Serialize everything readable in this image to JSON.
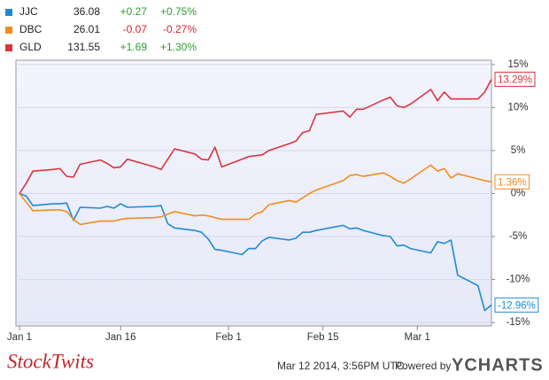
{
  "chart_data": {
    "type": "line",
    "x": [
      "Jan 1",
      "Jan 2",
      "Jan 3",
      "Jan 6",
      "Jan 7",
      "Jan 8",
      "Jan 9",
      "Jan 10",
      "Jan 13",
      "Jan 14",
      "Jan 15",
      "Jan 16",
      "Jan 17",
      "Jan 21",
      "Jan 22",
      "Jan 23",
      "Jan 24",
      "Jan 27",
      "Jan 28",
      "Jan 29",
      "Jan 30",
      "Jan 31",
      "Feb 3",
      "Feb 4",
      "Feb 5",
      "Feb 6",
      "Feb 7",
      "Feb 10",
      "Feb 11",
      "Feb 12",
      "Feb 13",
      "Feb 14",
      "Feb 18",
      "Feb 19",
      "Feb 20",
      "Feb 21",
      "Feb 24",
      "Feb 25",
      "Feb 26",
      "Feb 27",
      "Feb 28",
      "Mar 3",
      "Mar 4",
      "Mar 5",
      "Mar 6",
      "Mar 7",
      "Mar 10",
      "Mar 11",
      "Mar 12"
    ],
    "xlim": [
      "Jan 1",
      "Mar 12"
    ],
    "xticks": [
      "Jan 1",
      "Jan 16",
      "Feb 1",
      "Feb 15",
      "Mar 1"
    ],
    "ylim": [
      -15.4,
      15.5
    ],
    "yticks": [
      {
        "value": 15,
        "label": "15%"
      },
      {
        "value": 10,
        "label": "10%"
      },
      {
        "value": 5,
        "label": "5%"
      },
      {
        "value": 0,
        "label": "0%"
      },
      {
        "value": -5,
        "label": "-5%"
      },
      {
        "value": -10,
        "label": "-10%"
      },
      {
        "value": -15,
        "label": "-15%"
      }
    ],
    "grid": true,
    "series": [
      {
        "name": "JJC",
        "color": "#1f8ad4",
        "price": 36.08,
        "change": "+0.27",
        "change_pct": "+0.75%",
        "change_color": "#2e9e2e",
        "last_label": "-12.96%",
        "values": [
          0,
          -0.3,
          -1.4,
          -1.2,
          -1.2,
          -1.1,
          -3.1,
          -1.6,
          -1.7,
          -1.5,
          -1.7,
          -1.2,
          -1.6,
          -1.5,
          -1.4,
          -3.5,
          -4.0,
          -4.3,
          -4.5,
          -5.3,
          -6.5,
          -6.6,
          -7.1,
          -6.4,
          -6.4,
          -5.5,
          -5.1,
          -5.4,
          -5.2,
          -4.5,
          -4.5,
          -4.3,
          -3.7,
          -4.1,
          -4.0,
          -4.3,
          -4.9,
          -5.0,
          -6.1,
          -6.0,
          -6.4,
          -6.9,
          -5.6,
          -5.8,
          -5.4,
          -9.5,
          -10.7,
          -13.6,
          -12.96
        ]
      },
      {
        "name": "DBC",
        "color": "#f28c1e",
        "price": 26.01,
        "change": "-0.07",
        "change_pct": "-0.27%",
        "change_color": "#d9232d",
        "last_label": "1.36%",
        "values": [
          0,
          -1.0,
          -2.0,
          -1.9,
          -1.9,
          -2.1,
          -3.0,
          -3.6,
          -3.2,
          -3.2,
          -3.2,
          -3.0,
          -2.9,
          -2.8,
          -2.7,
          -2.4,
          -2.1,
          -2.6,
          -2.5,
          -2.6,
          -2.8,
          -3.0,
          -3.0,
          -3.0,
          -2.4,
          -2.1,
          -1.3,
          -0.8,
          -1.0,
          -0.5,
          0.0,
          0.4,
          1.5,
          2.1,
          2.2,
          2.0,
          2.4,
          2.0,
          1.5,
          1.2,
          1.7,
          3.3,
          2.6,
          2.9,
          1.8,
          2.3,
          1.7,
          1.5,
          1.36
        ]
      },
      {
        "name": "GLD",
        "color": "#d9353d",
        "price": 131.55,
        "change": "+1.69",
        "change_pct": "+1.30%",
        "change_color": "#2e9e2e",
        "last_label": "13.29%",
        "values": [
          0,
          1.2,
          2.6,
          2.8,
          2.9,
          2.0,
          1.9,
          3.4,
          3.9,
          3.5,
          3.0,
          3.1,
          4.0,
          3.1,
          2.8,
          4.0,
          5.2,
          4.6,
          4.0,
          3.9,
          5.4,
          3.1,
          4.0,
          4.3,
          4.4,
          4.5,
          5.0,
          5.8,
          6.1,
          7.1,
          7.3,
          9.2,
          9.6,
          8.9,
          9.8,
          9.8,
          10.9,
          11.2,
          10.2,
          10.0,
          10.4,
          12.1,
          10.8,
          11.8,
          11.0,
          11.0,
          11.0,
          11.8,
          13.29
        ]
      }
    ]
  },
  "footer": {
    "logo": "StockTwits",
    "timestamp": "Mar 12 2014, 3:56PM UTC.",
    "powered_by": "Powered by",
    "brand": "YCHARTS"
  }
}
